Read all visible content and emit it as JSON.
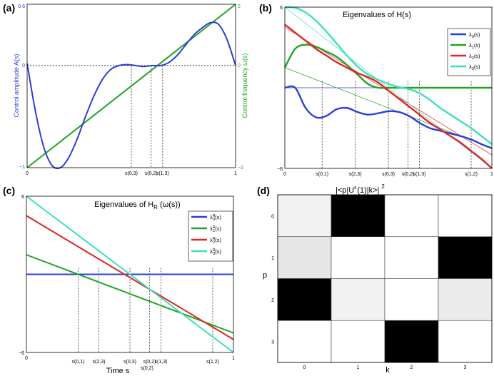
{
  "chart_data": [
    {
      "panel": "a",
      "panel_label": "(a)",
      "type": "line",
      "title": "",
      "xlabel": "",
      "ylabel": "Control amplitude A(s)",
      "ylabel_right": "Control frequency  ω(s)",
      "xlim": [
        0,
        1
      ],
      "ylim": [
        -1,
        0.6
      ],
      "ylim_right": [
        -2,
        2
      ],
      "left_ticks": [
        "0.6",
        "0",
        "−1"
      ],
      "right_ticks": [
        "2",
        "0",
        "−2"
      ],
      "x_ticks": [
        "0",
        "1"
      ],
      "colors": {
        "amplitude": "#2b3fd6",
        "frequency": "#22a322",
        "zero_line": "#000000"
      },
      "series": [
        {
          "name": "A(s)",
          "axis": "left",
          "x": [
            0,
            0.04,
            0.08,
            0.12,
            0.16,
            0.2,
            0.24,
            0.28,
            0.32,
            0.36,
            0.4,
            0.44,
            0.48,
            0.52,
            0.56,
            0.6,
            0.64,
            0.68,
            0.72,
            0.76,
            0.8,
            0.84,
            0.88,
            0.92,
            0.96,
            1.0
          ],
          "y": [
            0.02,
            -0.45,
            -0.8,
            -0.98,
            -1.0,
            -0.9,
            -0.72,
            -0.5,
            -0.3,
            -0.14,
            -0.04,
            0.0,
            0.01,
            0.0,
            -0.01,
            0.0,
            0.0,
            0.03,
            0.1,
            0.2,
            0.3,
            0.37,
            0.42,
            0.4,
            0.25,
            0.0
          ]
        },
        {
          "name": "ω(s)",
          "axis": "right",
          "x": [
            0,
            1
          ],
          "y": [
            -2,
            2
          ]
        }
      ],
      "markers": [
        {
          "label": "s(0,3)",
          "x": 0.5
        },
        {
          "label": "s(0,2)",
          "x": 0.595
        },
        {
          "label": "s(1,3)",
          "x": 0.65
        }
      ]
    },
    {
      "panel": "b",
      "panel_label": "(b)",
      "type": "line",
      "title": "Eigenvalues of H(s)",
      "xlim": [
        0,
        1
      ],
      "ylim": [
        -6,
        6
      ],
      "y_ticks": [
        "6",
        "−6"
      ],
      "x_ticks": [
        "0",
        "1"
      ],
      "legend": "top-right",
      "series": [
        {
          "name": "λ0(s)",
          "sym": "λ",
          "sub": "0",
          "tail": "(s)",
          "color": "#2b3fd6",
          "x": [
            0,
            0.05,
            0.1,
            0.15,
            0.2,
            0.25,
            0.3,
            0.35,
            0.4,
            0.45,
            0.5,
            0.55,
            0.6,
            0.65,
            0.7,
            0.75,
            0.8,
            0.85,
            0.9,
            0.95,
            1.0
          ],
          "y": [
            0,
            0,
            -1.5,
            -2.2,
            -2.1,
            -1.6,
            -1.5,
            -1.8,
            -2.0,
            -1.9,
            -1.75,
            -1.8,
            -2.1,
            -2.6,
            -3.0,
            -3.2,
            -3.4,
            -3.6,
            -3.85,
            -4.2,
            -4.5
          ]
        },
        {
          "name": "λ1(s)",
          "sym": "λ",
          "sub": "1",
          "tail": "(s)",
          "color": "#22a322",
          "x": [
            0,
            0.05,
            0.1,
            0.15,
            0.2,
            0.25,
            0.3,
            0.35,
            0.4,
            0.45,
            0.5,
            0.55,
            0.6,
            0.65,
            0.7,
            0.75,
            0.8,
            0.85,
            0.9,
            0.95,
            1.0
          ],
          "y": [
            1.5,
            2.9,
            3.2,
            3.05,
            2.7,
            2.3,
            1.7,
            1.0,
            0.3,
            0.0,
            0.0,
            0.0,
            0.0,
            0.0,
            0.0,
            0.0,
            0.0,
            0.0,
            0.0,
            0.0,
            0.0
          ]
        },
        {
          "name": "λ2(s)",
          "sym": "λ",
          "sub": "2",
          "tail": "(s)",
          "color": "#e02626",
          "x": [
            0,
            0.05,
            0.1,
            0.15,
            0.2,
            0.25,
            0.3,
            0.35,
            0.4,
            0.45,
            0.5,
            0.55,
            0.6,
            0.65,
            0.7,
            0.75,
            0.8,
            0.85,
            0.9,
            0.95,
            1.0
          ],
          "y": [
            4.7,
            4.1,
            3.5,
            2.9,
            2.4,
            1.9,
            1.5,
            1.1,
            0.8,
            0.4,
            -0.2,
            -0.8,
            -1.4,
            -2.0,
            -2.6,
            -3.1,
            -3.6,
            -4.1,
            -4.7,
            -5.3,
            -6.0
          ]
        },
        {
          "name": "λ3(s)",
          "sym": "λ",
          "sub": "3",
          "tail": "(s)",
          "color": "#3de0bb",
          "x": [
            0,
            0.05,
            0.1,
            0.15,
            0.2,
            0.25,
            0.3,
            0.35,
            0.4,
            0.45,
            0.5,
            0.55,
            0.6,
            0.65,
            0.7,
            0.75,
            0.8,
            0.85,
            0.9,
            0.95,
            1.0
          ],
          "y": [
            6.0,
            5.95,
            5.6,
            5.0,
            4.2,
            3.3,
            2.4,
            1.6,
            1.0,
            0.6,
            0.3,
            0.05,
            -0.1,
            -0.4,
            -0.9,
            -1.5,
            -2.0,
            -2.5,
            -3.0,
            -3.6,
            -4.2
          ]
        }
      ],
      "markers": [
        {
          "label": "s(0,1)",
          "x": 0.18
        },
        {
          "label": "s(2,3)",
          "x": 0.34
        },
        {
          "label": "s(0,3)",
          "x": 0.5
        },
        {
          "label": "s(0,2)",
          "x": 0.595
        },
        {
          "label": "s(1,3)",
          "x": 0.65
        },
        {
          "label": "s(1,2)",
          "x": 0.9
        }
      ]
    },
    {
      "panel": "c",
      "panel_label": "(c)",
      "type": "line",
      "title": "Eigenvalues of H",
      "title_sub": "R",
      "title_tail": "(ω(s))",
      "xlabel": "Time s",
      "xlim": [
        0,
        1
      ],
      "ylim": [
        -6,
        6
      ],
      "y_ticks": [
        "6",
        "−6"
      ],
      "x_ticks": [
        "0",
        "1"
      ],
      "legend": "top-right",
      "series": [
        {
          "name": "λ0R(s)",
          "sym": "λ",
          "sub": "0",
          "sup": "R",
          "tail": "(s)",
          "color": "#2b3fd6",
          "x": [
            0,
            1
          ],
          "y": [
            0,
            0
          ]
        },
        {
          "name": "λ1R(s)",
          "sym": "λ",
          "sub": "1",
          "sup": "R",
          "tail": "(s)",
          "color": "#22a322",
          "x": [
            0,
            1
          ],
          "y": [
            1.5,
            -4.5
          ]
        },
        {
          "name": "λ2R(s)",
          "sym": "λ",
          "sub": "2",
          "sup": "R",
          "tail": "(s)",
          "color": "#e02626",
          "x": [
            0,
            1
          ],
          "y": [
            4.5,
            -5.0
          ]
        },
        {
          "name": "λ3R(s)",
          "sym": "λ",
          "sub": "3",
          "sup": "R",
          "tail": "(s)",
          "color": "#3de0bb",
          "x": [
            0,
            1
          ],
          "y": [
            6.0,
            -6.0
          ]
        }
      ],
      "markers": [
        {
          "label": "s(0,1)",
          "x": 0.25
        },
        {
          "label": "s(2,3)",
          "x": 0.35
        },
        {
          "label": "s(0,3)",
          "x": 0.5
        },
        {
          "label": "s(0,2)",
          "x": 0.595
        },
        {
          "label": "s(1,3)",
          "x": 0.65
        },
        {
          "label": "s(1,2)",
          "x": 0.9
        }
      ]
    },
    {
      "panel": "d",
      "panel_label": "(d)",
      "type": "heatmap",
      "title": "|<p|U",
      "title_sup_letter": "ε",
      "title_tail": "(1)|k>|",
      "title_power": "2",
      "xlabel": "k",
      "ylabel": "p",
      "x_ticks": [
        "0",
        "1",
        "2",
        "3"
      ],
      "y_ticks": [
        "0",
        "1",
        "2",
        "3"
      ],
      "values": [
        [
          0.05,
          1.0,
          0.0,
          0.0
        ],
        [
          0.1,
          0.0,
          0.0,
          1.0
        ],
        [
          1.0,
          0.05,
          0.0,
          0.08
        ],
        [
          0.0,
          0.0,
          1.0,
          0.0
        ]
      ]
    }
  ],
  "labels": {
    "x_axis_time": "Time s",
    "superscript_02": "s(0,2)"
  }
}
